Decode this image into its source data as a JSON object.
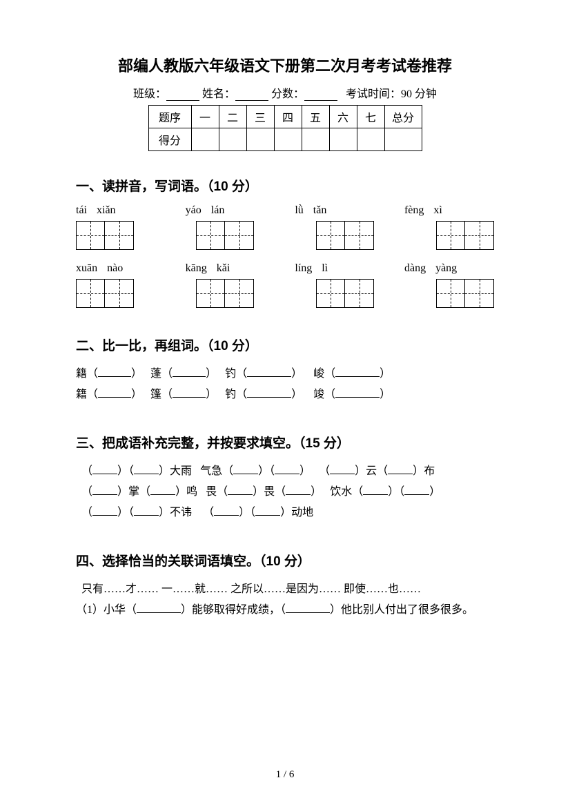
{
  "title": "部编人教版六年级语文下册第二次月考考试卷推荐",
  "info": {
    "class_label": "班级：",
    "name_label": "姓名：",
    "score_label": "分数：",
    "exam_time": "考试时间：90 分钟"
  },
  "score_table": {
    "row1": [
      "题序",
      "一",
      "二",
      "三",
      "四",
      "五",
      "六",
      "七",
      "总分"
    ],
    "row2_label": "得分"
  },
  "section1": {
    "title": "一、读拼音，写词语。（10 分）",
    "row1": [
      {
        "a": "tái",
        "b": "xiǎn"
      },
      {
        "a": "yáo",
        "b": "lán"
      },
      {
        "a": "lǜ",
        "b": "tǎn"
      },
      {
        "a": "fèng",
        "b": "xì"
      }
    ],
    "row2": [
      {
        "a": "xuān",
        "b": "nào"
      },
      {
        "a": "kāng",
        "b": "kǎi"
      },
      {
        "a": "líng",
        "b": "lì"
      },
      {
        "a": "dàng",
        "b": "yàng"
      }
    ]
  },
  "section2": {
    "title": "二、比一比，再组词。（10 分）",
    "line1": {
      "c1": "籍",
      "c2": "蓬",
      "c3": "钓",
      "c4": "峻"
    },
    "line2": {
      "c1": "籍",
      "c2": "篷",
      "c3": "钓",
      "c4": "竣"
    }
  },
  "section3": {
    "title": "三、把成语补充完整，并按要求填空。（15 分）",
    "line1": {
      "t1": "大雨",
      "t2": "气急",
      "t3": "云",
      "t4": "布"
    },
    "line2": {
      "t1": "掌",
      "t2": "鸣",
      "t3": "畏",
      "t4": "畏",
      "t5": "饮水"
    },
    "line3": {
      "t1": "不讳",
      "t2": "动地"
    }
  },
  "section4": {
    "title": "四、选择恰当的关联词语填空。（10 分）",
    "options": "只有……才……    一……就……    之所以……是因为……    即使……也……",
    "q1_prefix": "（1）小华（",
    "q1_mid": "）能够取得好成绩，（",
    "q1_suffix": "）他比别人付出了很多很多。"
  },
  "page_num": "1 / 6"
}
